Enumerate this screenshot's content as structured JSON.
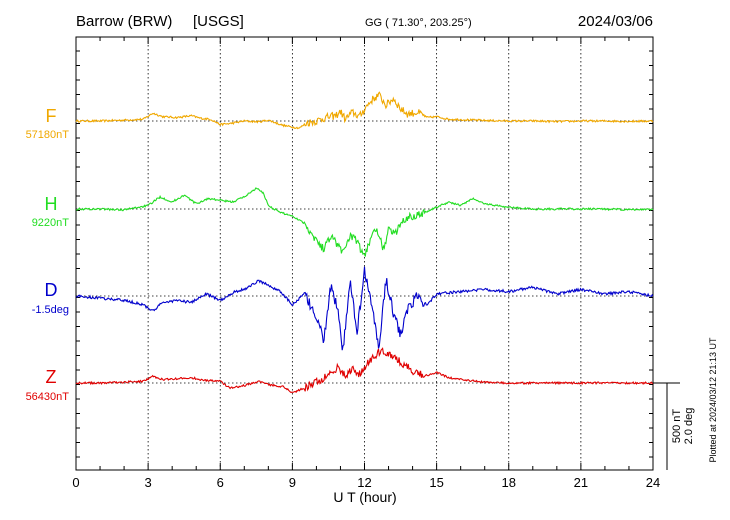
{
  "header": {
    "station": "Barrow (BRW)",
    "source": "[USGS]",
    "coords": "GG ( 71.30°, 203.25°)",
    "date": "2024/03/06"
  },
  "footer": {
    "plotted": "Plotted at 2024/03/12 21:13 UT",
    "scale_nt": "500 nT",
    "scale_deg": "2.0 deg"
  },
  "chart_data": {
    "type": "line",
    "title": "Barrow (BRW) [USGS] 2024/03/06",
    "xlabel": "U T (hour)",
    "ylabel": "",
    "xlim": [
      0,
      24
    ],
    "xticks": [
      "0",
      "3",
      "6",
      "9",
      "12",
      "15",
      "18",
      "21",
      "24"
    ],
    "grid": true,
    "scale": {
      "nT_per_bar": 500,
      "deg_per_bar": 2.0
    },
    "series": [
      {
        "name": "F",
        "baseline_label": "57180nT",
        "color": "#f0a800",
        "unit": "nT",
        "x": [
          0,
          1,
          2,
          2.8,
          3.2,
          3.6,
          4.2,
          4.8,
          5.2,
          5.6,
          6.0,
          6.4,
          7.0,
          7.6,
          8.0,
          8.6,
          9.0,
          9.3,
          9.6,
          10.0,
          10.4,
          10.8,
          11.0,
          11.2,
          11.5,
          11.8,
          12.0,
          12.3,
          12.6,
          12.9,
          13.2,
          13.5,
          13.8,
          14.2,
          14.6,
          15.0,
          15.5,
          16,
          17,
          18,
          19,
          20,
          21,
          22,
          23,
          24
        ],
        "values": [
          0,
          0,
          5,
          10,
          45,
          25,
          20,
          30,
          15,
          10,
          -20,
          -15,
          0,
          -5,
          5,
          -25,
          -35,
          -40,
          -10,
          0,
          20,
          30,
          55,
          10,
          50,
          25,
          70,
          120,
          150,
          90,
          130,
          70,
          40,
          50,
          20,
          25,
          10,
          8,
          3,
          0,
          0,
          -3,
          0,
          0,
          -2,
          0
        ]
      },
      {
        "name": "H",
        "baseline_label": "9220nT",
        "color": "#22dd22",
        "unit": "nT",
        "x": [
          0,
          1,
          2,
          3,
          3.5,
          4,
          4.5,
          5,
          5.5,
          6,
          6.5,
          7,
          7.5,
          7.8,
          8,
          8.5,
          9,
          9.5,
          10,
          10.3,
          10.6,
          10.9,
          11.1,
          11.4,
          11.7,
          12,
          12.2,
          12.4,
          12.6,
          12.8,
          13,
          13.3,
          13.6,
          14,
          14.5,
          15,
          15.5,
          16,
          16.5,
          17,
          18,
          19,
          20,
          21,
          22,
          23,
          24
        ],
        "values": [
          0,
          0,
          -5,
          20,
          70,
          40,
          80,
          30,
          60,
          50,
          40,
          70,
          120,
          90,
          20,
          -20,
          -40,
          -80,
          -180,
          -230,
          -150,
          -210,
          -250,
          -150,
          -190,
          -280,
          -190,
          -100,
          -160,
          -230,
          -120,
          -140,
          -60,
          -40,
          -20,
          10,
          40,
          20,
          60,
          30,
          10,
          0,
          0,
          0,
          0,
          -5,
          0
        ]
      },
      {
        "name": "D",
        "baseline_label": "-1.5deg",
        "color": "#0000cc",
        "unit": "deg",
        "x": [
          0,
          1,
          2,
          2.8,
          3.2,
          3.6,
          4.2,
          4.8,
          5.4,
          6.0,
          6.6,
          7.0,
          7.6,
          8.0,
          8.5,
          9.0,
          9.5,
          10.0,
          10.3,
          10.6,
          10.9,
          11.1,
          11.4,
          11.7,
          12.0,
          12.3,
          12.6,
          12.9,
          13.2,
          13.5,
          13.8,
          14.2,
          14.6,
          15.0,
          16,
          17,
          18,
          19,
          20,
          21,
          22,
          23,
          24
        ],
        "values": [
          0,
          -0.05,
          -0.1,
          -0.2,
          -0.35,
          -0.15,
          -0.1,
          -0.15,
          0.05,
          -0.1,
          0.1,
          0.15,
          0.35,
          0.25,
          0.1,
          -0.2,
          0.05,
          -0.5,
          -1.0,
          0.2,
          -0.3,
          -1.3,
          0.3,
          -0.8,
          0.6,
          -0.2,
          -1.2,
          0.4,
          -0.4,
          -0.9,
          -0.3,
          0.0,
          -0.2,
          0.05,
          0.1,
          0.15,
          0.1,
          0.2,
          0.05,
          0.15,
          0.05,
          0.1,
          0.0
        ]
      },
      {
        "name": "Z",
        "baseline_label": "56430nT",
        "color": "#e00000",
        "unit": "nT",
        "x": [
          0,
          1,
          2,
          2.8,
          3.2,
          3.6,
          4.2,
          4.8,
          5.4,
          6.0,
          6.4,
          7.0,
          7.6,
          8.0,
          8.6,
          9.0,
          9.4,
          9.8,
          10.2,
          10.6,
          10.9,
          11.2,
          11.5,
          11.8,
          12.1,
          12.4,
          12.7,
          13.0,
          13.3,
          13.6,
          14.0,
          14.5,
          15.0,
          15.5,
          16,
          17,
          18,
          19,
          20,
          21,
          22,
          23,
          24
        ],
        "values": [
          0,
          0,
          5,
          10,
          40,
          20,
          25,
          30,
          15,
          10,
          -30,
          -15,
          10,
          -10,
          -20,
          -55,
          -35,
          -10,
          20,
          60,
          90,
          40,
          80,
          50,
          110,
          150,
          190,
          170,
          140,
          110,
          70,
          40,
          60,
          30,
          20,
          5,
          0,
          0,
          0,
          0,
          0,
          0,
          0
        ]
      }
    ]
  }
}
